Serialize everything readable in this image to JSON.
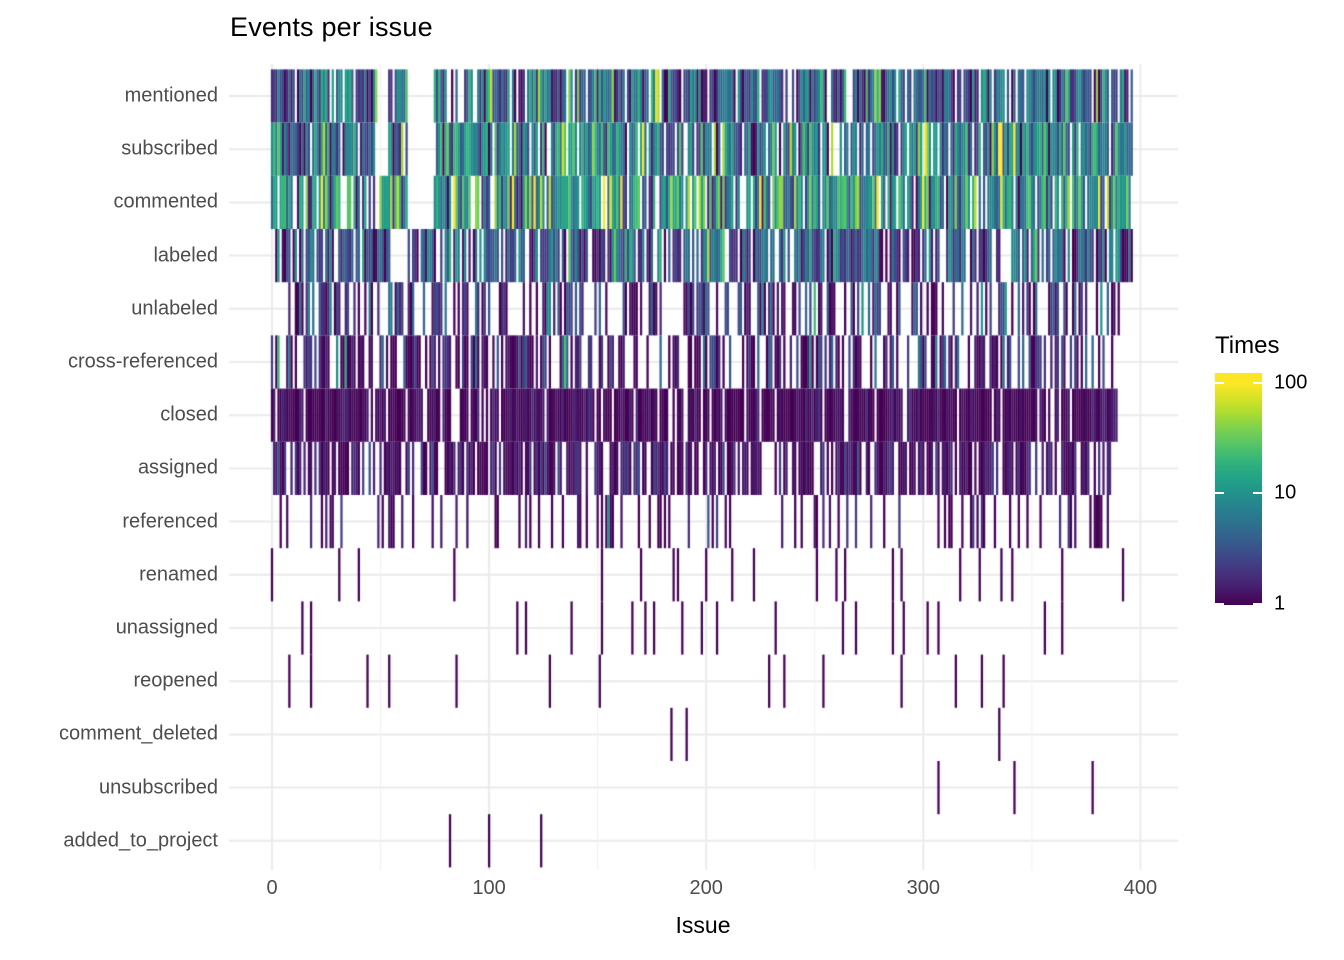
{
  "title": "Events per issue",
  "x_axis": {
    "label": "Issue",
    "tick_labels": [
      "0",
      "100",
      "200",
      "300",
      "400"
    ],
    "tick_values": [
      0,
      100,
      200,
      300,
      400
    ],
    "minor_tick_values": [
      50,
      150,
      250,
      350
    ]
  },
  "y_axis": {
    "categories": [
      "mentioned",
      "subscribed",
      "commented",
      "labeled",
      "unlabeled",
      "cross-referenced",
      "closed",
      "assigned",
      "referenced",
      "renamed",
      "unassigned",
      "reopened",
      "comment_deleted",
      "unsubscribed",
      "added_to_project"
    ]
  },
  "legend": {
    "title": "Times",
    "tick_labels": [
      "100",
      "10",
      "1"
    ],
    "tick_values": [
      100,
      10,
      1
    ],
    "scale": "log10"
  },
  "colors": {
    "background": "#ffffff",
    "grid_major": "#ebebeb",
    "grid_minor": "#f1f1f1",
    "axis_text": "#4d4d4d",
    "title_text": "#000000",
    "viridis_stops": [
      "#440154",
      "#482878",
      "#3e4989",
      "#31688e",
      "#26828e",
      "#1f9e89",
      "#35b779",
      "#6ece58",
      "#b5de2b",
      "#fde725"
    ]
  },
  "chart_data": {
    "type": "heatmap",
    "title": "Events per issue",
    "xlabel": "Issue",
    "x_range": [
      0,
      397
    ],
    "value_name": "Times",
    "value_scale": "log10",
    "value_range": [
      1,
      100
    ],
    "note": "dense rows are stochastic 1-issue-wide tiles; parameters approximate observed density and viridis brightness",
    "rows": [
      {
        "name": "mentioned",
        "kind": "dense",
        "seed": 11,
        "density": 0.88,
        "xmin": 0,
        "xmax": 397,
        "log_mean": 0.62,
        "log_sd": 0.45,
        "gaps": [
          [
            49,
            53
          ],
          [
            63,
            74
          ],
          [
            86,
            88
          ]
        ]
      },
      {
        "name": "subscribed",
        "kind": "dense",
        "seed": 22,
        "density": 0.87,
        "xmin": 0,
        "xmax": 397,
        "log_mean": 0.85,
        "log_sd": 0.45,
        "gaps": [
          [
            49,
            53
          ],
          [
            63,
            74
          ]
        ]
      },
      {
        "name": "commented",
        "kind": "dense",
        "seed": 33,
        "density": 0.84,
        "xmin": 0,
        "xmax": 395,
        "log_mean": 0.95,
        "log_sd": 0.5,
        "gaps": [
          [
            63,
            74
          ]
        ]
      },
      {
        "name": "labeled",
        "kind": "dense",
        "seed": 44,
        "density": 0.78,
        "xmin": 0,
        "xmax": 396,
        "log_mean": 0.45,
        "log_sd": 0.4,
        "gaps": [
          [
            56,
            62
          ]
        ]
      },
      {
        "name": "unlabeled",
        "kind": "dense",
        "seed": 55,
        "density": 0.5,
        "xmin": 8,
        "xmax": 390,
        "log_mean": 0.25,
        "log_sd": 0.35,
        "gaps": []
      },
      {
        "name": "cross-referenced",
        "kind": "dense",
        "seed": 66,
        "density": 0.55,
        "xmin": 0,
        "xmax": 388,
        "log_mean": 0.15,
        "log_sd": 0.35,
        "gaps": []
      },
      {
        "name": "closed",
        "kind": "dense",
        "seed": 77,
        "density": 0.88,
        "xmin": 0,
        "xmax": 389,
        "log_mean": 0.02,
        "log_sd": 0.12,
        "gaps": [
          [
            84,
            86
          ]
        ]
      },
      {
        "name": "assigned",
        "kind": "dense",
        "seed": 88,
        "density": 0.68,
        "xmin": 0,
        "xmax": 387,
        "log_mean": 0.08,
        "log_sd": 0.2,
        "gaps": []
      },
      {
        "name": "referenced",
        "kind": "dense",
        "seed": 99,
        "density": 0.24,
        "xmin": 2,
        "xmax": 385,
        "log_mean": 0.05,
        "log_sd": 0.22,
        "gaps": [],
        "highlights": [
          {
            "issue": 155,
            "times": 9
          }
        ]
      },
      {
        "name": "renamed",
        "kind": "sparse",
        "times": 1,
        "issues": [
          0,
          31,
          40,
          84,
          152,
          170,
          185,
          187,
          200,
          212,
          222,
          251,
          260,
          264,
          286,
          290,
          317,
          326,
          336,
          341,
          364,
          392
        ]
      },
      {
        "name": "unassigned",
        "kind": "sparse",
        "times": 1,
        "issues": [
          14,
          18,
          113,
          117,
          138,
          152,
          166,
          172,
          176,
          189,
          198,
          205,
          232,
          263,
          269,
          286,
          291,
          302,
          307,
          356,
          364
        ]
      },
      {
        "name": "reopened",
        "kind": "sparse",
        "times": 1,
        "issues": [
          8,
          18,
          44,
          54,
          85,
          128,
          151,
          229,
          236,
          254,
          290,
          315,
          327,
          337
        ]
      },
      {
        "name": "comment_deleted",
        "kind": "sparse",
        "times": 1,
        "issues": [
          184,
          191,
          335
        ]
      },
      {
        "name": "unsubscribed",
        "kind": "sparse",
        "times": 1,
        "issues": [
          307,
          342,
          378
        ]
      },
      {
        "name": "added_to_project",
        "kind": "sparse",
        "times": 1,
        "issues": [
          82,
          100,
          124
        ]
      }
    ]
  }
}
